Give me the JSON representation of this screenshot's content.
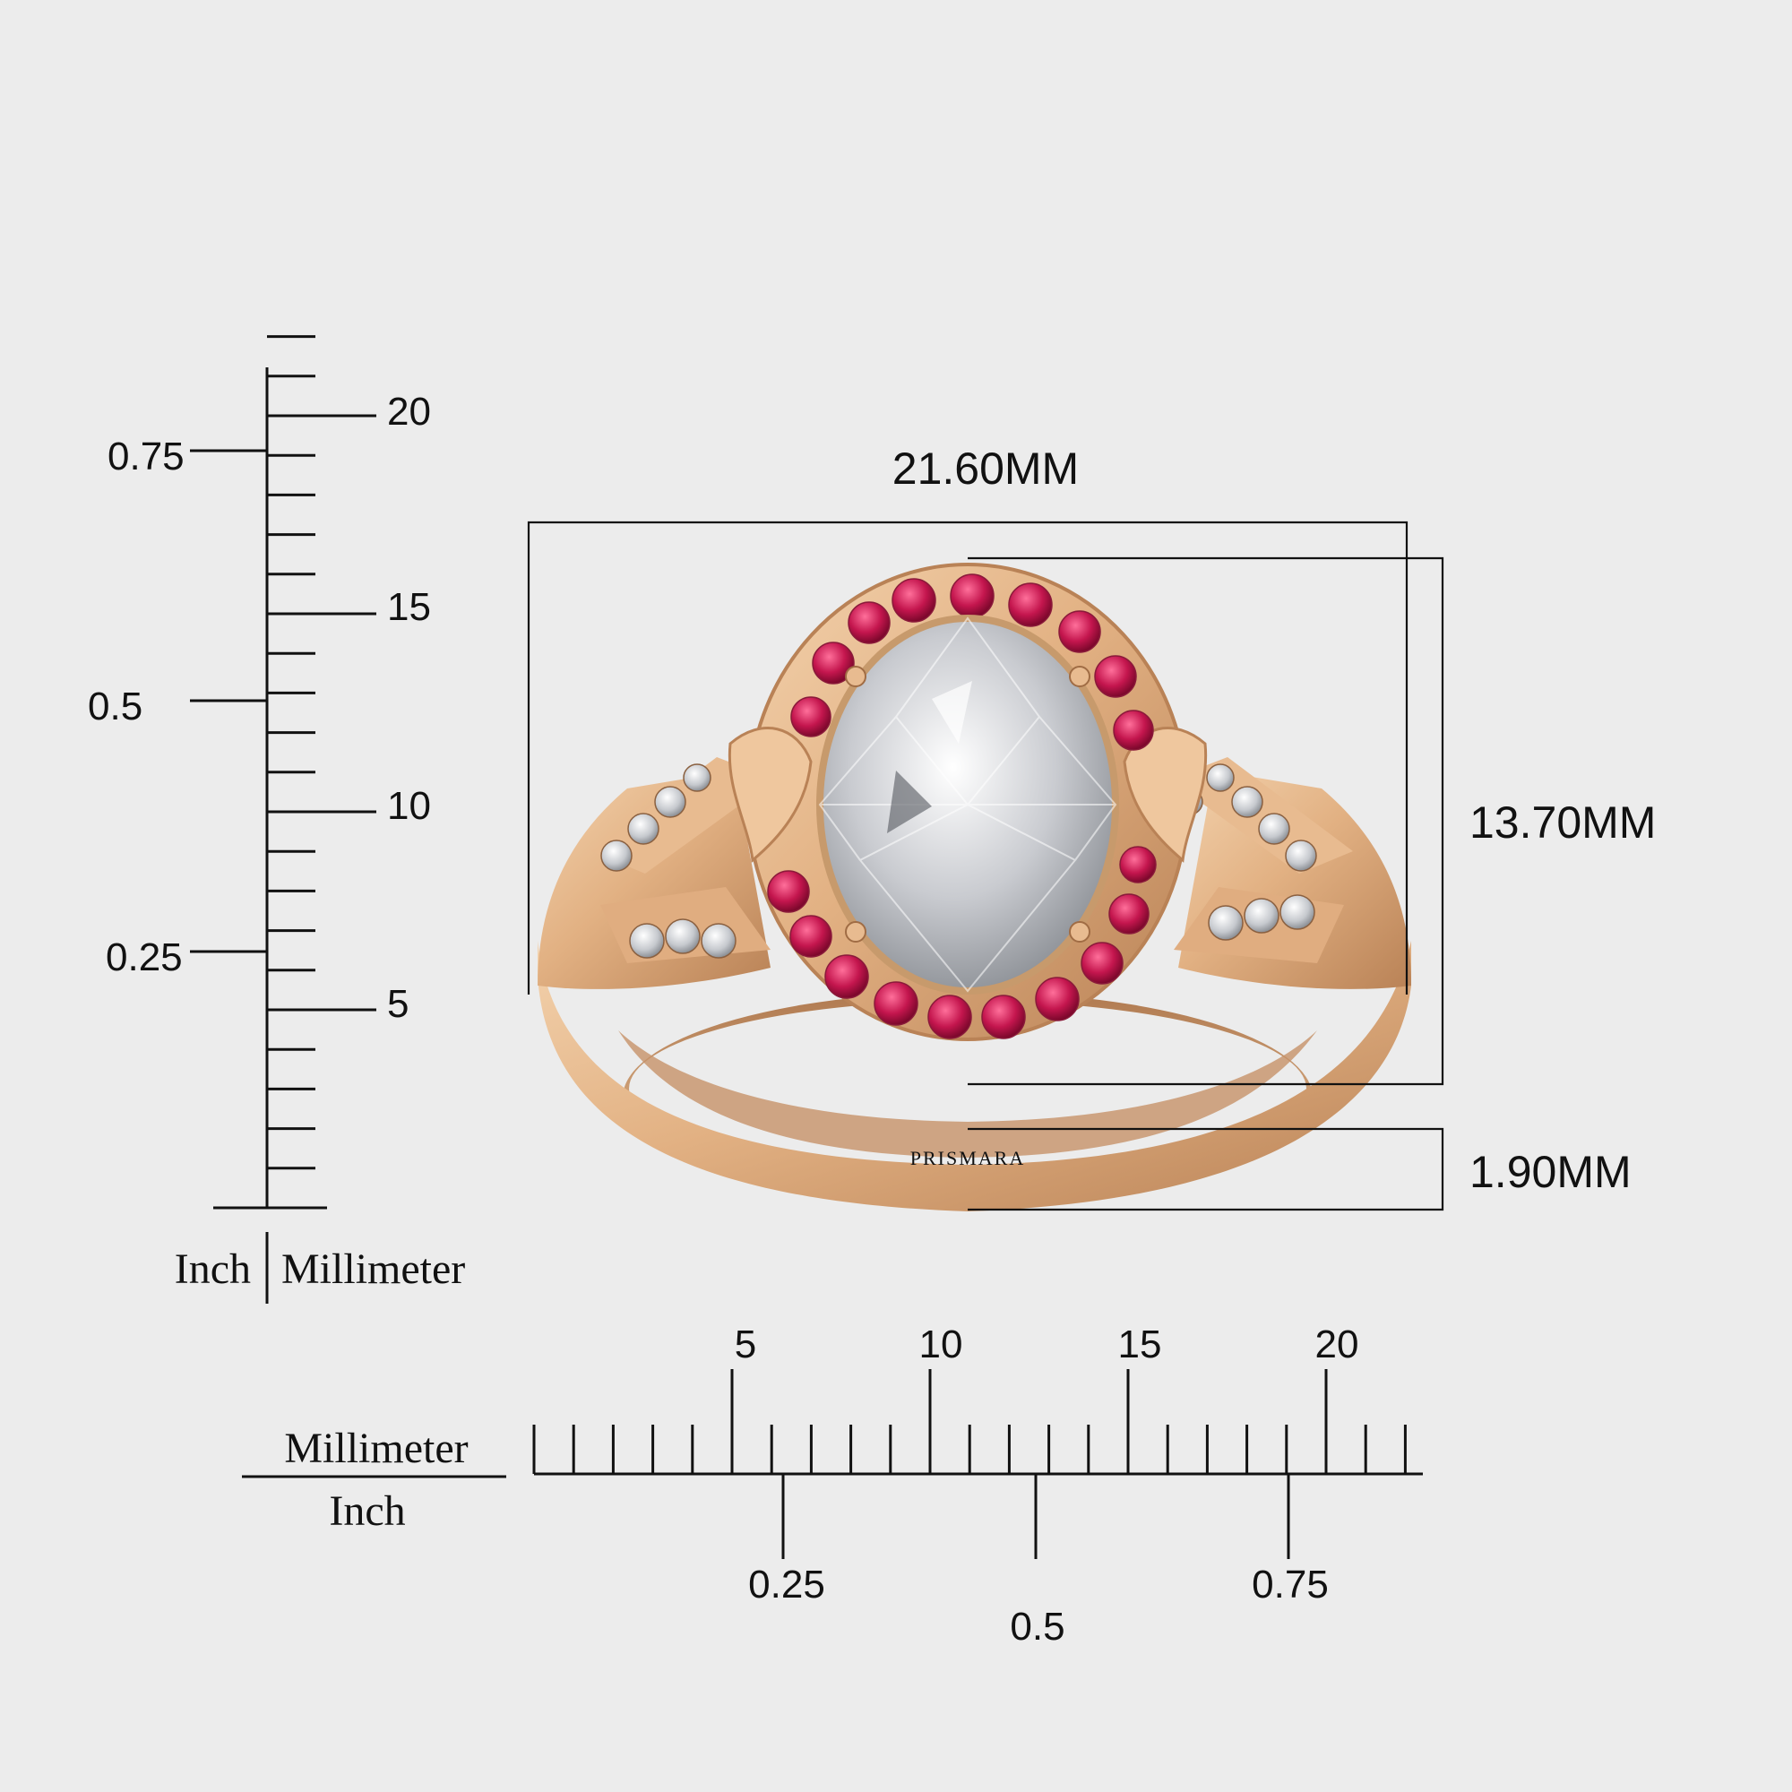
{
  "colors": {
    "background": "#ececec",
    "gold": "#e4b48a",
    "ruby": "#c4164e",
    "diamond": "#cfd2d6",
    "line": "#111111"
  },
  "dimensions": {
    "width": "21.60MM",
    "height": "13.70MM",
    "band": "1.90MM"
  },
  "brand": "PRISMARA",
  "vertical_ruler": {
    "mm_labels": [
      "20",
      "15",
      "10",
      "5"
    ],
    "inch_labels": [
      "0.75",
      "0.5",
      "0.25"
    ],
    "unit_left": "Inch",
    "unit_right": "Millimeter"
  },
  "horizontal_ruler": {
    "mm_labels": [
      "5",
      "10",
      "15",
      "20"
    ],
    "inch_labels": [
      "0.25",
      "0.5",
      "0.75"
    ],
    "unit_top": "Millimeter",
    "unit_bottom": "Inch"
  }
}
